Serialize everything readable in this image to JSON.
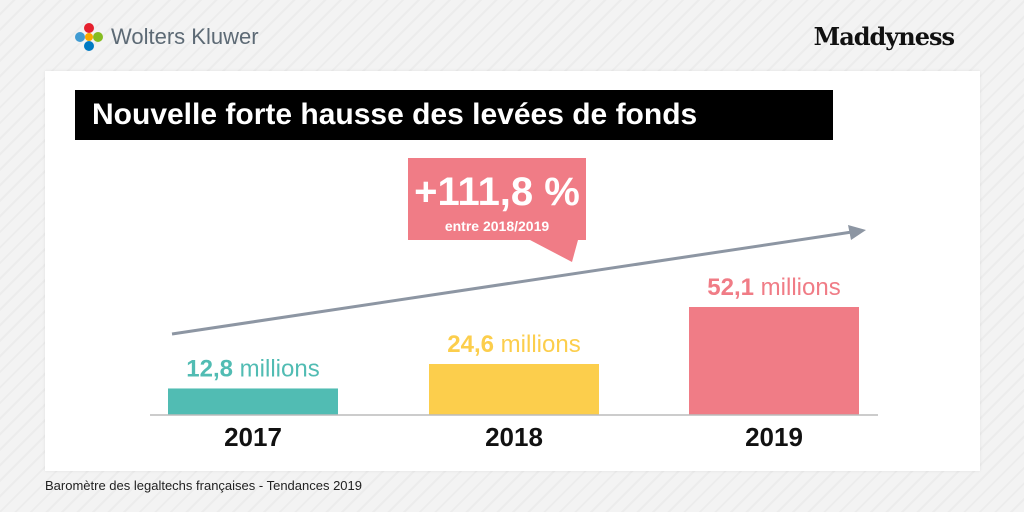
{
  "brand": {
    "left_logo_text": "Wolters Kluwer",
    "right_logo_text": "Maddyness"
  },
  "title": "Nouvelle forte hausse des levées de fonds",
  "callout": {
    "value": "+111,8 %",
    "subtitle": "entre 2018/2019",
    "color": "#f07c86"
  },
  "source": "Baromètre des legaltechs françaises - Tendances 2019",
  "colors": {
    "teal": "#51bcb3",
    "yellow": "#fcce4c",
    "pink": "#f07c86",
    "arrow": "#8d96a3",
    "axis": "#bbbbbb"
  },
  "chart_data": {
    "type": "bar",
    "title": "Nouvelle forte hausse des levées de fonds",
    "categories": [
      "2017",
      "2018",
      "2019"
    ],
    "values": [
      12.8,
      24.6,
      52.1
    ],
    "value_labels": [
      {
        "number": "12,8",
        "unit": "millions"
      },
      {
        "number": "24,6",
        "unit": "millions"
      },
      {
        "number": "52,1",
        "unit": "millions"
      }
    ],
    "unit": "millions",
    "bar_colors": [
      "#51bcb3",
      "#fcce4c",
      "#f07c86"
    ],
    "trend_arrow": true,
    "grid": false,
    "legend": "none",
    "xlabel": "",
    "ylabel": ""
  }
}
